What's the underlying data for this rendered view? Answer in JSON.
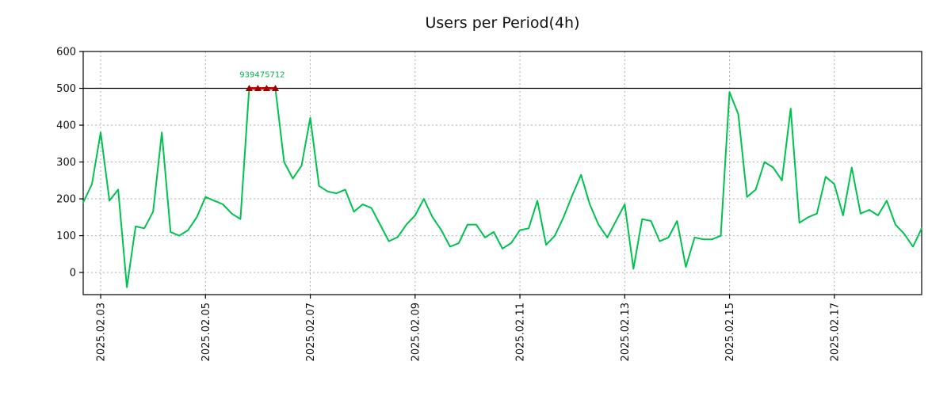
{
  "page": {
    "title": "Users per Period(4h)"
  },
  "chart_data": {
    "type": "line",
    "title": "Users per Period(4h)",
    "series_name": "users",
    "x_start": "2025.02.02 16:00",
    "point_interval_hours": 4,
    "values": [
      190,
      240,
      380,
      195,
      225,
      -40,
      125,
      120,
      165,
      380,
      110,
      100,
      115,
      150,
      205,
      195,
      185,
      160,
      145,
      500,
      500,
      500,
      500,
      300,
      255,
      290,
      420,
      235,
      220,
      215,
      225,
      165,
      185,
      175,
      130,
      85,
      96,
      130,
      155,
      200,
      150,
      115,
      70,
      80,
      130,
      130,
      95,
      110,
      65,
      80,
      115,
      120,
      195,
      75,
      100,
      150,
      210,
      265,
      185,
      130,
      95,
      140,
      185,
      10,
      145,
      140,
      85,
      95,
      140,
      15,
      95,
      90,
      90,
      100,
      490,
      430,
      205,
      225,
      300,
      285,
      250,
      445,
      135,
      150,
      160,
      260,
      240,
      155,
      285,
      160,
      170,
      155,
      195,
      130,
      105,
      70,
      120
    ],
    "x_tick_labels": [
      "2025.02.03",
      "2025.02.05",
      "2025.02.07",
      "2025.02.09",
      "2025.02.11",
      "2025.02.13",
      "2025.02.15",
      "2025.02.17"
    ],
    "first_tick_offset_points": 2,
    "tick_interval_points": 12,
    "y_ticks": [
      0,
      100,
      200,
      300,
      400,
      500,
      600
    ],
    "ylim": [
      -60,
      600
    ],
    "threshold": 500,
    "annotation": {
      "text": "939475712"
    },
    "grid": true,
    "legend": "none",
    "colors": {
      "line": "#00c24e",
      "capped_line": "#e00000",
      "capped_marker": "#990000",
      "grid": "#b0b0b0",
      "axis": "#000000",
      "threshold_line": "#000000",
      "tick_text": "#111111",
      "annotation_text": "#00b050",
      "background": "#ffffff"
    }
  }
}
